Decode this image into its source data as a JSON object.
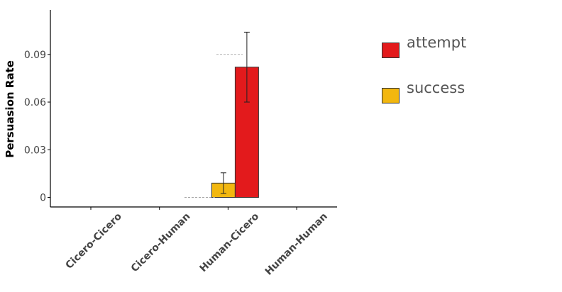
{
  "chart_data": {
    "type": "bar",
    "categories": [
      "Cicero-Cicero",
      "Cicero-Human",
      "Human-Cicero",
      "Human-Human"
    ],
    "series": [
      {
        "name": "success",
        "color": "#f2b70f",
        "values": [
          0,
          0,
          0.009,
          0
        ],
        "error": [
          0,
          0,
          0.0065,
          0
        ]
      },
      {
        "name": "attempt",
        "color": "#e31a1c",
        "values": [
          0,
          0,
          0.082,
          0
        ],
        "error": [
          0,
          0,
          0.022,
          0
        ]
      }
    ],
    "title": "",
    "xlabel": "",
    "ylabel": "Persuasion Rate",
    "ylim": [
      -0.006,
      0.118
    ],
    "yticks": [
      0,
      0.03,
      0.06,
      0.09
    ],
    "ytick_labels": [
      "0",
      "0.03",
      "0.06",
      "0.09"
    ],
    "legend": {
      "placement": "right",
      "entries": [
        "attempt",
        "success"
      ]
    },
    "grid": false
  }
}
